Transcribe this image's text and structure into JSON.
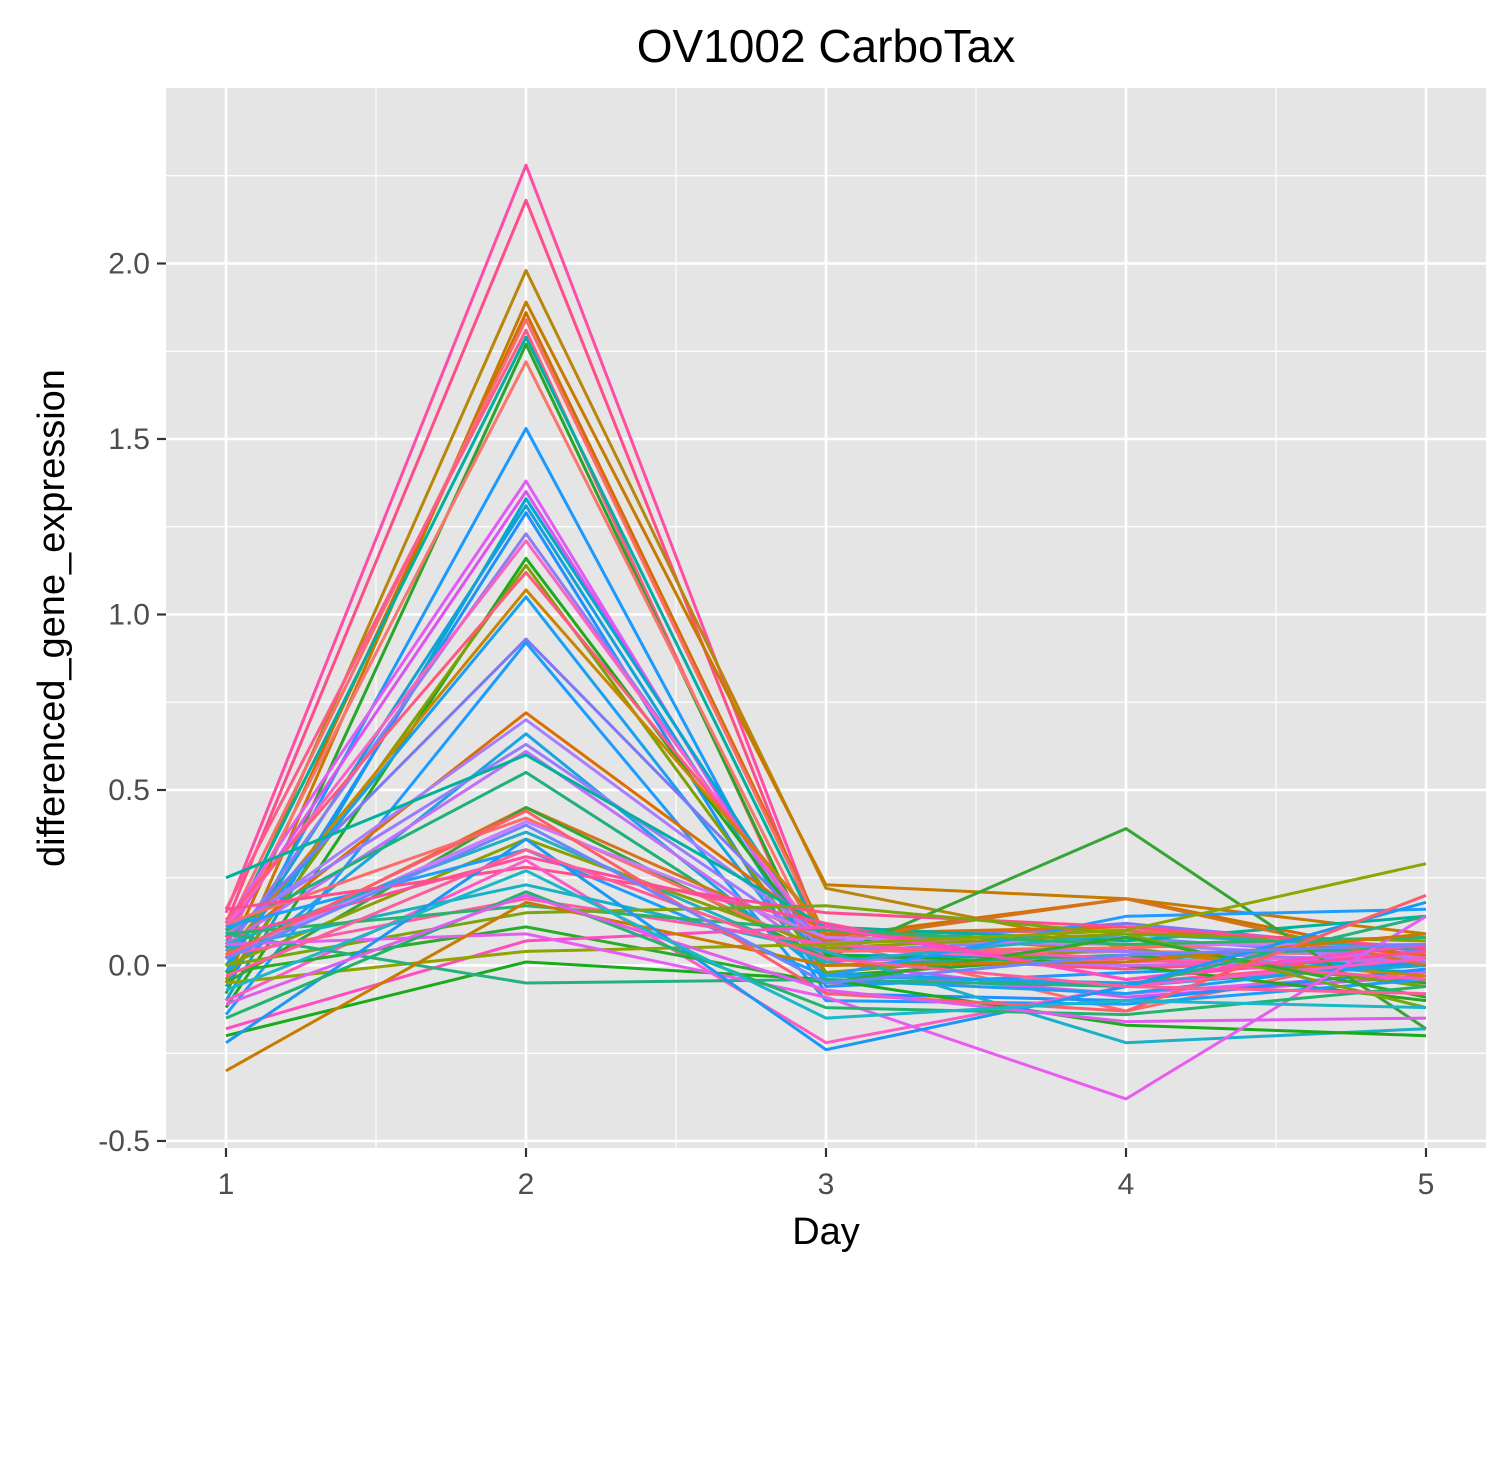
{
  "chart_data": {
    "type": "line",
    "title": "OV1002 CarboTax",
    "xlabel": "Day",
    "ylabel": "differenced_gene_expression",
    "x": [
      1,
      2,
      3,
      4,
      5
    ],
    "x_tick_labels": [
      "1",
      "2",
      "3",
      "4",
      "5"
    ],
    "y_ticks": [
      -0.5,
      0.0,
      0.5,
      1.0,
      1.5,
      2.0
    ],
    "y_tick_labels": [
      "-0.5",
      "0.0",
      "0.5",
      "1.0",
      "1.5",
      "2.0"
    ],
    "xlim": [
      0.8,
      5.2
    ],
    "ylim": [
      -0.52,
      2.5
    ],
    "grid": true,
    "legend": "none",
    "colors": {
      "panel_background": "#e5e5e5",
      "grid": "#ffffff",
      "tick_label": "#4d4d4d",
      "tick_mark": "#333333"
    },
    "series": [
      {
        "color": "#ff4da6",
        "values": [
          0.15,
          2.28,
          0.05,
          0.02,
          0.05
        ]
      },
      {
        "color": "#ff4d8a",
        "values": [
          0.12,
          2.18,
          0.03,
          -0.01,
          0.03
        ]
      },
      {
        "color": "#b8860b",
        "values": [
          0.05,
          1.98,
          0.22,
          0.05,
          -0.05
        ]
      },
      {
        "color": "#c77a00",
        "values": [
          -0.05,
          1.89,
          0.23,
          0.19,
          0.09
        ]
      },
      {
        "color": "#cf6f00",
        "values": [
          0.02,
          1.86,
          0.08,
          0.19,
          0.02
        ]
      },
      {
        "color": "#fb6d6d",
        "values": [
          0.1,
          1.84,
          0.07,
          -0.13,
          0.05
        ]
      },
      {
        "color": "#ff5a8c",
        "values": [
          0.16,
          1.81,
          -0.05,
          -0.05,
          0.02
        ]
      },
      {
        "color": "#00b0a0",
        "values": [
          0.08,
          1.79,
          0.05,
          0.02,
          -0.02
        ]
      },
      {
        "color": "#2aa52a",
        "values": [
          -0.08,
          1.77,
          -0.03,
          0.03,
          -0.05
        ]
      },
      {
        "color": "#f8766d",
        "values": [
          0.06,
          1.72,
          0.02,
          0.04,
          0.03
        ]
      },
      {
        "color": "#1a99ff",
        "values": [
          -0.02,
          1.53,
          -0.06,
          -0.02,
          0.01
        ]
      },
      {
        "color": "#e05cf5",
        "values": [
          0.12,
          1.38,
          -0.02,
          -0.08,
          -0.02
        ]
      },
      {
        "color": "#dc54f0",
        "values": [
          0.09,
          1.35,
          0.01,
          -0.09,
          -0.03
        ]
      },
      {
        "color": "#00aacc",
        "values": [
          -0.1,
          1.33,
          0.03,
          0.02,
          0.0
        ]
      },
      {
        "color": "#14a0dc",
        "values": [
          0.0,
          1.31,
          -0.02,
          -0.06,
          0.01
        ]
      },
      {
        "color": "#1e90ff",
        "values": [
          -0.06,
          1.29,
          -0.08,
          -0.1,
          -0.01
        ]
      },
      {
        "color": "#8a7ff0",
        "values": [
          0.04,
          1.23,
          0.04,
          0.08,
          0.02
        ]
      },
      {
        "color": "#ff61c3",
        "values": [
          0.11,
          1.21,
          0.05,
          0.01,
          0.03
        ]
      },
      {
        "color": "#21a81e",
        "values": [
          -0.12,
          1.16,
          0.03,
          0.0,
          -0.1
        ]
      },
      {
        "color": "#7fa000",
        "values": [
          -0.04,
          1.14,
          -0.02,
          0.05,
          -0.06
        ]
      },
      {
        "color": "#ff5a7e",
        "values": [
          0.13,
          1.12,
          0.09,
          0.1,
          0.03
        ]
      },
      {
        "color": "#c98500",
        "values": [
          0.03,
          1.07,
          0.1,
          0.04,
          -0.03
        ]
      },
      {
        "color": "#1aa0f0",
        "values": [
          0.02,
          1.05,
          -0.04,
          -0.08,
          0.02
        ]
      },
      {
        "color": "#7b79f5",
        "values": [
          0.07,
          0.93,
          0.06,
          0.12,
          0.04
        ]
      },
      {
        "color": "#1d9cff",
        "values": [
          -0.14,
          0.92,
          -0.1,
          -0.11,
          -0.04
        ]
      },
      {
        "color": "#dd6e00",
        "values": [
          0.05,
          0.72,
          0.09,
          0.11,
          0.03
        ]
      },
      {
        "color": "#a87dff",
        "values": [
          0.09,
          0.7,
          0.07,
          0.06,
          0.02
        ]
      },
      {
        "color": "#1ba3e2",
        "values": [
          -0.02,
          0.66,
          -0.03,
          -0.05,
          0.0
        ]
      },
      {
        "color": "#9a7bff",
        "values": [
          0.1,
          0.63,
          0.05,
          0.04,
          0.01
        ]
      },
      {
        "color": "#c26ef7",
        "values": [
          0.06,
          0.61,
          0.02,
          0.0,
          0.02
        ]
      },
      {
        "color": "#00b29c",
        "values": [
          0.25,
          0.6,
          0.11,
          0.07,
          0.14
        ]
      },
      {
        "color": "#20b07a",
        "values": [
          0.1,
          0.55,
          0.0,
          0.03,
          0.05
        ]
      },
      {
        "color": "#d5731a",
        "values": [
          0.02,
          0.45,
          0.07,
          0.19,
          0.0
        ]
      },
      {
        "color": "#35a535",
        "values": [
          -0.05,
          0.45,
          0.02,
          0.39,
          -0.18
        ]
      },
      {
        "color": "#ff6b6b",
        "values": [
          0.12,
          0.42,
          0.04,
          0.05,
          0.08
        ]
      },
      {
        "color": "#cc77ff",
        "values": [
          0.03,
          0.41,
          0.08,
          0.06,
          0.06
        ]
      },
      {
        "color": "#20b0c0",
        "values": [
          0.06,
          0.38,
          0.01,
          0.09,
          0.05
        ]
      },
      {
        "color": "#8aa000",
        "values": [
          0.0,
          0.36,
          0.05,
          0.09,
          0.07
        ]
      },
      {
        "color": "#1e9dff",
        "values": [
          0.11,
          0.33,
          -0.03,
          0.14,
          0.16
        ]
      },
      {
        "color": "#ff4d9e",
        "values": [
          0.08,
          0.31,
          0.12,
          -0.04,
          0.04
        ]
      },
      {
        "color": "#ff4d8f",
        "values": [
          0.16,
          0.28,
          0.15,
          0.11,
          0.05
        ]
      },
      {
        "color": "#ff59c6",
        "values": [
          -0.1,
          0.3,
          -0.22,
          -0.06,
          0.02
        ]
      },
      {
        "color": "#1ab0c8",
        "values": [
          0.05,
          0.23,
          0.04,
          -0.22,
          -0.18
        ]
      },
      {
        "color": "#ff5aa5",
        "values": [
          0.03,
          0.19,
          0.06,
          0.02,
          -0.04
        ]
      },
      {
        "color": "#2bb36b",
        "values": [
          0.09,
          0.17,
          0.1,
          0.06,
          0.08
        ]
      },
      {
        "color": "#7aa510",
        "values": [
          0.0,
          0.15,
          0.17,
          0.09,
          -0.12
        ]
      },
      {
        "color": "#2aab2a",
        "values": [
          -0.02,
          0.11,
          -0.05,
          0.08,
          -0.09
        ]
      },
      {
        "color": "#ff4dc1",
        "values": [
          -0.18,
          0.07,
          0.11,
          -0.04,
          0.06
        ]
      },
      {
        "color": "#8fa400",
        "values": [
          -0.05,
          0.04,
          0.06,
          0.1,
          0.29
        ]
      },
      {
        "color": "#1aab1a",
        "values": [
          -0.2,
          0.01,
          -0.04,
          -0.17,
          -0.2
        ]
      },
      {
        "color": "#25b07e",
        "values": [
          0.09,
          -0.05,
          -0.04,
          -0.06,
          0.14
        ]
      },
      {
        "color": "#e85cf2",
        "values": [
          0.06,
          0.09,
          -0.09,
          -0.38,
          0.14
        ]
      },
      {
        "color": "#c77c00",
        "values": [
          -0.3,
          0.18,
          0.0,
          0.01,
          0.09
        ]
      },
      {
        "color": "#1a98f5",
        "values": [
          -0.22,
          0.36,
          -0.24,
          -0.06,
          0.18
        ]
      },
      {
        "color": "#ff5d6b",
        "values": [
          0.03,
          0.44,
          -0.08,
          -0.13,
          0.2
        ]
      },
      {
        "color": "#23b36e",
        "values": [
          -0.15,
          0.21,
          -0.12,
          -0.14,
          -0.06
        ]
      },
      {
        "color": "#e25bf0",
        "values": [
          -0.11,
          0.2,
          -0.07,
          -0.16,
          -0.15
        ]
      },
      {
        "color": "#1ab8c8",
        "values": [
          -0.07,
          0.27,
          -0.15,
          -0.1,
          -0.12
        ]
      },
      {
        "color": "#ff5c9a",
        "values": [
          -0.03,
          0.33,
          0.02,
          -0.06,
          -0.08
        ]
      },
      {
        "color": "#6e85ff",
        "values": [
          0.02,
          0.4,
          -0.05,
          0.03,
          0.06
        ]
      }
    ]
  }
}
